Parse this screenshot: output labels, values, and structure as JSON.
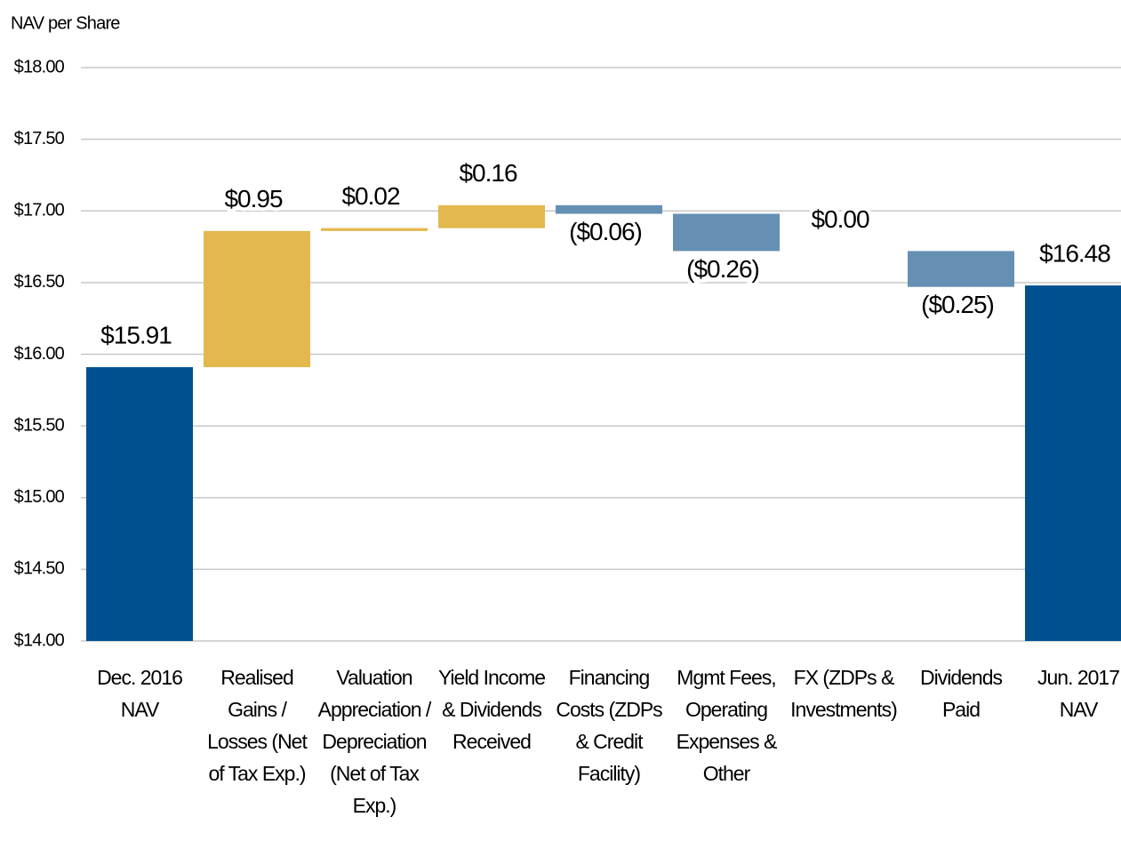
{
  "chart_data": {
    "type": "waterfall",
    "y_label": "NAV per Share",
    "categories": [
      "Dec. 2016 NAV",
      "Realised Gains / Losses (Net of Tax Exp.)",
      "Valuation Appreciation / Depreciation (Net of Tax Exp.)",
      "Yield Income & Dividends Received",
      "Financing Costs (ZDPs & Credit Facility)",
      "Mgmt Fees, Operating Expenses & Other",
      "FX (ZDPs & Investments)",
      "Dividends Paid",
      "Jun. 2017 NAV"
    ],
    "values": [
      15.91,
      0.95,
      0.02,
      0.16,
      -0.06,
      -0.26,
      0.0,
      -0.25,
      16.48
    ],
    "value_labels": [
      "$15.91",
      "$0.95",
      "$0.02",
      "$0.16",
      "($0.06)",
      "($0.26)",
      "$0.00",
      "($0.25)",
      "$16.48"
    ],
    "measure": [
      "total",
      "relative",
      "relative",
      "relative",
      "relative",
      "relative",
      "relative",
      "relative",
      "total"
    ],
    "colors": {
      "total": "#00508f",
      "increase": "#e3b84d",
      "decrease": "#6590b4"
    },
    "ylim": [
      14,
      18
    ],
    "yticks": [
      {
        "value": 14,
        "label": "$14.00"
      },
      {
        "value": 14.5,
        "label": "$14.50"
      },
      {
        "value": 15,
        "label": "$15.00"
      },
      {
        "value": 15.5,
        "label": "$15.50"
      },
      {
        "value": 16,
        "label": "$16.00"
      },
      {
        "value": 16.5,
        "label": "$16.50"
      },
      {
        "value": 17,
        "label": "$17.00"
      },
      {
        "value": 17.5,
        "label": "$17.50"
      },
      {
        "value": 18,
        "label": "$18.00"
      }
    ],
    "grid": true
  }
}
